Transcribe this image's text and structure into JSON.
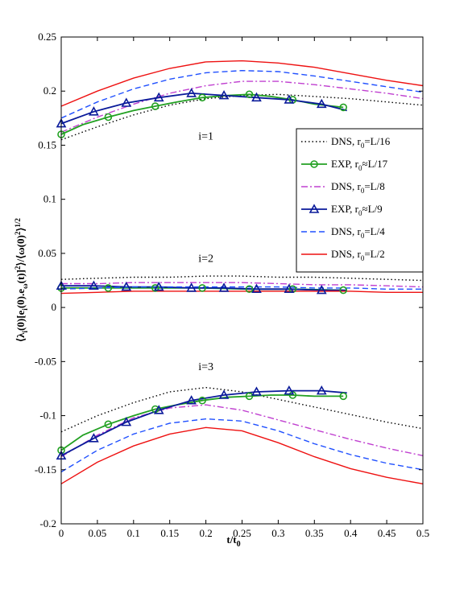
{
  "chart_data": {
    "type": "line",
    "xlabel": "t/t",
    "xlabel_sub": "0",
    "ylabel": "⟨λ_i(0)[e_i(0)·e_ω(t)]²⟩/⟨ω(0)²⟩^{1/2}",
    "xlim": [
      0,
      0.5
    ],
    "ylim": [
      -0.2,
      0.25
    ],
    "xticks": [
      0,
      0.05,
      0.1,
      0.15,
      0.2,
      0.25,
      0.3,
      0.35,
      0.4,
      0.45,
      0.5
    ],
    "xtick_labels": [
      "0",
      "0.05",
      "0.1",
      "0.15",
      "0.2",
      "0.25",
      "0.3",
      "0.35",
      "0.4",
      "0.45",
      "0.5"
    ],
    "yticks": [
      -0.2,
      -0.15,
      -0.1,
      -0.05,
      0,
      0.05,
      0.1,
      0.15,
      0.2,
      0.25
    ],
    "ytick_labels": [
      "-0.2",
      "-0.15",
      "-0.1",
      "-0.05",
      "0",
      "0.05",
      "0.1",
      "0.15",
      "0.2",
      "0.25"
    ],
    "grid": false,
    "legend_position": "right",
    "annotations": [
      {
        "text": "i=1",
        "x": 0.2,
        "y": 0.155
      },
      {
        "text": "i=2",
        "x": 0.2,
        "y": 0.042
      },
      {
        "text": "i=3",
        "x": 0.2,
        "y": -0.058
      }
    ],
    "series": [
      {
        "name": "DNS, r0=L/16",
        "legend_main": "DNS, r",
        "legend_sub": "0",
        "legend_tail": "=L/16",
        "color": "#000000",
        "dash": "1.5,3",
        "marker": "none",
        "groups": [
          {
            "x": [
              0,
              0.05,
              0.1,
              0.15,
              0.2,
              0.25,
              0.3,
              0.35,
              0.4,
              0.45,
              0.5
            ],
            "y": [
              0.155,
              0.167,
              0.178,
              0.187,
              0.193,
              0.196,
              0.197,
              0.195,
              0.193,
              0.19,
              0.187
            ]
          },
          {
            "x": [
              0,
              0.05,
              0.1,
              0.15,
              0.2,
              0.25,
              0.3,
              0.35,
              0.4,
              0.45,
              0.5
            ],
            "y": [
              0.026,
              0.027,
              0.028,
              0.028,
              0.029,
              0.029,
              0.028,
              0.028,
              0.027,
              0.026,
              0.025
            ]
          },
          {
            "x": [
              0,
              0.05,
              0.1,
              0.15,
              0.2,
              0.25,
              0.3,
              0.35,
              0.4,
              0.45,
              0.5
            ],
            "y": [
              -0.115,
              -0.1,
              -0.088,
              -0.078,
              -0.074,
              -0.078,
              -0.085,
              -0.092,
              -0.099,
              -0.106,
              -0.112
            ]
          }
        ]
      },
      {
        "name": "EXP, r0≈L/17",
        "legend_main": "EXP, r",
        "legend_sub": "0",
        "legend_tail": "≈L/17",
        "color": "#22a022",
        "dash": "",
        "marker": "circle",
        "groups": [
          {
            "x": [
              0,
              0.03,
              0.065,
              0.1,
              0.13,
              0.16,
              0.195,
              0.23,
              0.26,
              0.29,
              0.32,
              0.35,
              0.39
            ],
            "y": [
              0.16,
              0.169,
              0.176,
              0.182,
              0.186,
              0.19,
              0.194,
              0.196,
              0.197,
              0.195,
              0.192,
              0.188,
              0.185
            ]
          },
          {
            "x": [
              0,
              0.065,
              0.13,
              0.195,
              0.26,
              0.32,
              0.39
            ],
            "y": [
              0.018,
              0.018,
              0.018,
              0.018,
              0.017,
              0.017,
              0.016
            ]
          },
          {
            "x": [
              0,
              0.03,
              0.065,
              0.1,
              0.13,
              0.16,
              0.195,
              0.23,
              0.26,
              0.29,
              0.32,
              0.35,
              0.39
            ],
            "y": [
              -0.132,
              -0.118,
              -0.108,
              -0.1,
              -0.094,
              -0.09,
              -0.086,
              -0.083,
              -0.082,
              -0.081,
              -0.081,
              -0.082,
              -0.082
            ]
          }
        ],
        "marker_x": [
          0,
          0.065,
          0.13,
          0.195,
          0.26,
          0.32,
          0.39
        ]
      },
      {
        "name": "DNS, r0=L/8",
        "legend_main": "DNS, r",
        "legend_sub": "0",
        "legend_tail": "=L/8",
        "color": "#c040d0",
        "dash": "8,3,2,3",
        "marker": "none",
        "groups": [
          {
            "x": [
              0,
              0.05,
              0.1,
              0.15,
              0.2,
              0.25,
              0.3,
              0.35,
              0.4,
              0.45,
              0.5
            ],
            "y": [
              0.162,
              0.176,
              0.188,
              0.198,
              0.205,
              0.209,
              0.209,
              0.206,
              0.202,
              0.198,
              0.193
            ]
          },
          {
            "x": [
              0,
              0.05,
              0.1,
              0.15,
              0.2,
              0.25,
              0.3,
              0.35,
              0.4,
              0.45,
              0.5
            ],
            "y": [
              0.022,
              0.022,
              0.023,
              0.023,
              0.023,
              0.023,
              0.022,
              0.021,
              0.021,
              0.02,
              0.019
            ]
          },
          {
            "x": [
              0,
              0.05,
              0.1,
              0.15,
              0.2,
              0.25,
              0.3,
              0.35,
              0.4,
              0.45,
              0.5
            ],
            "y": [
              -0.138,
              -0.118,
              -0.102,
              -0.093,
              -0.09,
              -0.095,
              -0.104,
              -0.113,
              -0.122,
              -0.13,
              -0.137
            ]
          }
        ]
      },
      {
        "name": "EXP, r0≈L/9",
        "legend_main": "EXP, r",
        "legend_sub": "0",
        "legend_tail": "≈L/9",
        "color": "#0a1a9a",
        "dash": "",
        "marker": "triangle",
        "groups": [
          {
            "x": [
              0,
              0.045,
              0.09,
              0.135,
              0.18,
              0.225,
              0.27,
              0.315,
              0.36,
              0.395
            ],
            "y": [
              0.17,
              0.181,
              0.189,
              0.194,
              0.198,
              0.196,
              0.194,
              0.192,
              0.188,
              0.182
            ]
          },
          {
            "x": [
              0,
              0.045,
              0.09,
              0.135,
              0.18,
              0.225,
              0.27,
              0.315,
              0.36,
              0.395
            ],
            "y": [
              0.02,
              0.02,
              0.019,
              0.019,
              0.018,
              0.018,
              0.017,
              0.017,
              0.016,
              0.016
            ]
          },
          {
            "x": [
              0,
              0.045,
              0.09,
              0.135,
              0.18,
              0.225,
              0.27,
              0.315,
              0.36,
              0.395
            ],
            "y": [
              -0.137,
              -0.121,
              -0.106,
              -0.095,
              -0.086,
              -0.081,
              -0.078,
              -0.077,
              -0.077,
              -0.079
            ]
          }
        ],
        "marker_x": [
          0,
          0.045,
          0.09,
          0.135,
          0.18,
          0.225,
          0.27,
          0.315,
          0.36
        ]
      },
      {
        "name": "DNS, r0=L/4",
        "legend_main": "DNS, r",
        "legend_sub": "0",
        "legend_tail": "=L/4",
        "color": "#2050ff",
        "dash": "7,4",
        "marker": "none",
        "groups": [
          {
            "x": [
              0,
              0.05,
              0.1,
              0.15,
              0.2,
              0.25,
              0.3,
              0.35,
              0.4,
              0.45,
              0.5
            ],
            "y": [
              0.175,
              0.19,
              0.202,
              0.211,
              0.217,
              0.219,
              0.218,
              0.214,
              0.209,
              0.204,
              0.199
            ]
          },
          {
            "x": [
              0,
              0.05,
              0.1,
              0.15,
              0.2,
              0.25,
              0.3,
              0.35,
              0.4,
              0.45,
              0.5
            ],
            "y": [
              0.017,
              0.018,
              0.019,
              0.019,
              0.019,
              0.019,
              0.019,
              0.018,
              0.018,
              0.017,
              0.017
            ]
          },
          {
            "x": [
              0,
              0.05,
              0.1,
              0.15,
              0.2,
              0.25,
              0.3,
              0.35,
              0.4,
              0.45,
              0.5
            ],
            "y": [
              -0.152,
              -0.132,
              -0.117,
              -0.107,
              -0.103,
              -0.105,
              -0.114,
              -0.126,
              -0.136,
              -0.144,
              -0.15
            ]
          }
        ]
      },
      {
        "name": "DNS, r0=L/2",
        "legend_main": "DNS, r",
        "legend_sub": "0",
        "legend_tail": "=L/2",
        "color": "#ee1111",
        "dash": "",
        "marker": "none",
        "groups": [
          {
            "x": [
              0,
              0.05,
              0.1,
              0.15,
              0.2,
              0.25,
              0.3,
              0.35,
              0.4,
              0.45,
              0.5
            ],
            "y": [
              0.186,
              0.2,
              0.212,
              0.221,
              0.227,
              0.228,
              0.226,
              0.222,
              0.216,
              0.21,
              0.205
            ]
          },
          {
            "x": [
              0,
              0.05,
              0.1,
              0.15,
              0.2,
              0.25,
              0.3,
              0.35,
              0.4,
              0.45,
              0.5
            ],
            "y": [
              0.013,
              0.014,
              0.015,
              0.015,
              0.015,
              0.015,
              0.015,
              0.015,
              0.015,
              0.014,
              0.014
            ]
          },
          {
            "x": [
              0,
              0.05,
              0.1,
              0.15,
              0.2,
              0.25,
              0.3,
              0.35,
              0.4,
              0.45,
              0.5
            ],
            "y": [
              -0.163,
              -0.143,
              -0.128,
              -0.117,
              -0.111,
              -0.114,
              -0.125,
              -0.138,
              -0.149,
              -0.157,
              -0.163
            ]
          }
        ]
      }
    ]
  }
}
